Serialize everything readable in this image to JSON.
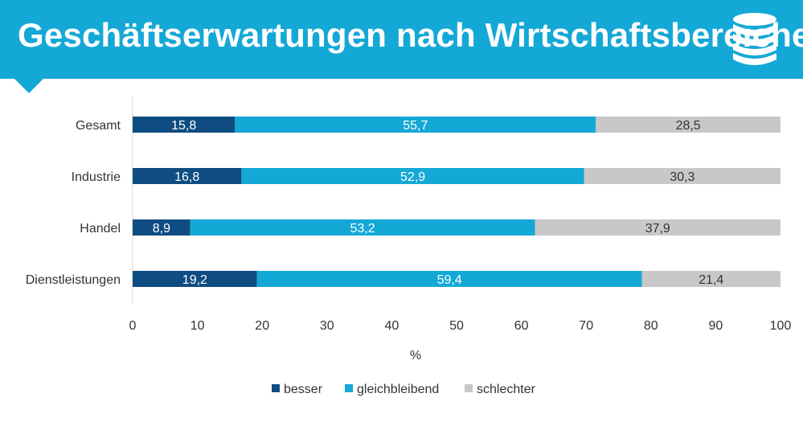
{
  "header": {
    "title": "Geschäftserwartungen nach Wirtschaftsbereichen",
    "icon": "database-icon",
    "background_color": "#14a8d6"
  },
  "chart_data": {
    "type": "bar",
    "orientation": "horizontal",
    "stacked": true,
    "categories": [
      "Gesamt",
      "Industrie",
      "Handel",
      "Dienstleistungen"
    ],
    "series": [
      {
        "name": "besser",
        "color": "#0f4c81",
        "values": [
          15.8,
          16.8,
          8.9,
          19.2
        ],
        "labels": [
          "15,8",
          "16,8",
          "8,9",
          "19,2"
        ]
      },
      {
        "name": "gleichbleibend",
        "color": "#14a8d6",
        "values": [
          55.7,
          52.9,
          53.2,
          59.4
        ],
        "labels": [
          "55,7",
          "52,9",
          "53,2",
          "59,4"
        ]
      },
      {
        "name": "schlechter",
        "color": "#c8c8c8",
        "values": [
          28.5,
          30.3,
          37.9,
          21.4
        ],
        "labels": [
          "28,5",
          "30,3",
          "37,9",
          "21,4"
        ]
      }
    ],
    "xlabel": "%",
    "xlim": [
      0,
      100
    ],
    "xticks": [
      "0",
      "10",
      "20",
      "30",
      "40",
      "50",
      "60",
      "70",
      "80",
      "90",
      "100"
    ],
    "grid": false,
    "legend": "bottom"
  }
}
